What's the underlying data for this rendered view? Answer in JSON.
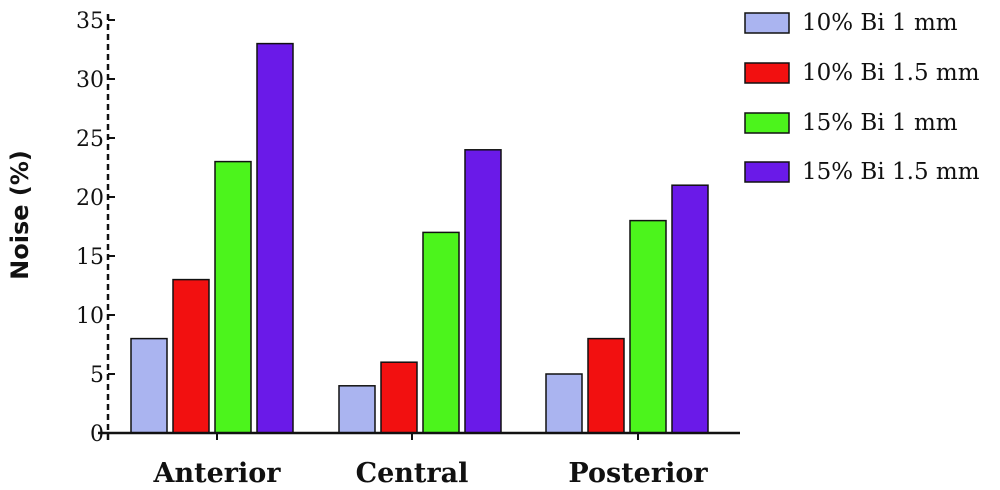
{
  "chart_data": {
    "type": "bar",
    "title": "",
    "xlabel": "",
    "ylabel": "Noise (%)",
    "ylim": [
      0,
      35
    ],
    "yticks": [
      0,
      5,
      10,
      15,
      20,
      25,
      30,
      35
    ],
    "grid": false,
    "legend_position": "top-right",
    "categories": [
      "Anterior",
      "Central",
      "Posterior"
    ],
    "series": [
      {
        "name": "10% Bi 1 mm",
        "color": "#aab4f0",
        "values": [
          8,
          4,
          5
        ]
      },
      {
        "name": "10% Bi 1.5 mm",
        "color": "#f21010",
        "values": [
          13,
          6,
          8
        ]
      },
      {
        "name": "15% Bi 1 mm",
        "color": "#4cf41c",
        "values": [
          23,
          17,
          18
        ]
      },
      {
        "name": "15% Bi 1.5 mm",
        "color": "#6a1ae8",
        "values": [
          33,
          24,
          21
        ]
      }
    ]
  }
}
